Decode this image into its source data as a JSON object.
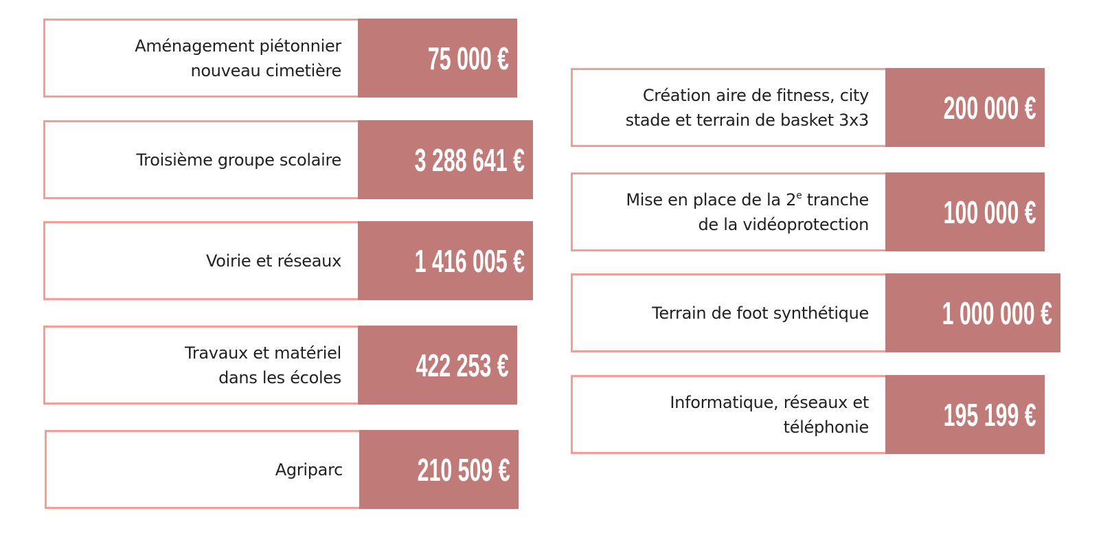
{
  "colors": {
    "border": "#f0a096",
    "value_bg": "#c07a78",
    "value_text": "#ffffff",
    "label_text": "#222222"
  },
  "left_column": [
    {
      "lines": [
        {
          "text": "Aménagement piétonnier"
        },
        {
          "text": "nouveau cimetière"
        }
      ],
      "amount": "75 000 €"
    },
    {
      "lines": [
        {
          "text": "Troisième groupe scolaire"
        }
      ],
      "amount": "3 288 641 €"
    },
    {
      "lines": [
        {
          "text": "Voirie et réseaux"
        }
      ],
      "amount": "1 416 005 €"
    },
    {
      "lines": [
        {
          "text": "Travaux et matériel"
        },
        {
          "text": "dans les écoles"
        }
      ],
      "amount": "422 253 €"
    },
    {
      "lines": [
        {
          "text": "Agriparc"
        }
      ],
      "amount": "210 509 €"
    }
  ],
  "right_column": [
    {
      "lines": [
        {
          "text": "Création aire de fitness, city"
        },
        {
          "text": "stade et terrain de basket 3x3"
        }
      ],
      "amount": "200 000 €"
    },
    {
      "lines": [
        {
          "text": "Mise en place de la 2",
          "sup": "e",
          "post": " tranche"
        },
        {
          "text": "de la vidéoprotection"
        }
      ],
      "amount": "100 000 €"
    },
    {
      "lines": [
        {
          "text": "Terrain de foot synthétique"
        }
      ],
      "amount": "1 000 000 €"
    },
    {
      "lines": [
        {
          "text": "Informatique, réseaux et"
        },
        {
          "text": "téléphonie"
        }
      ],
      "amount": "195 199 €"
    }
  ]
}
